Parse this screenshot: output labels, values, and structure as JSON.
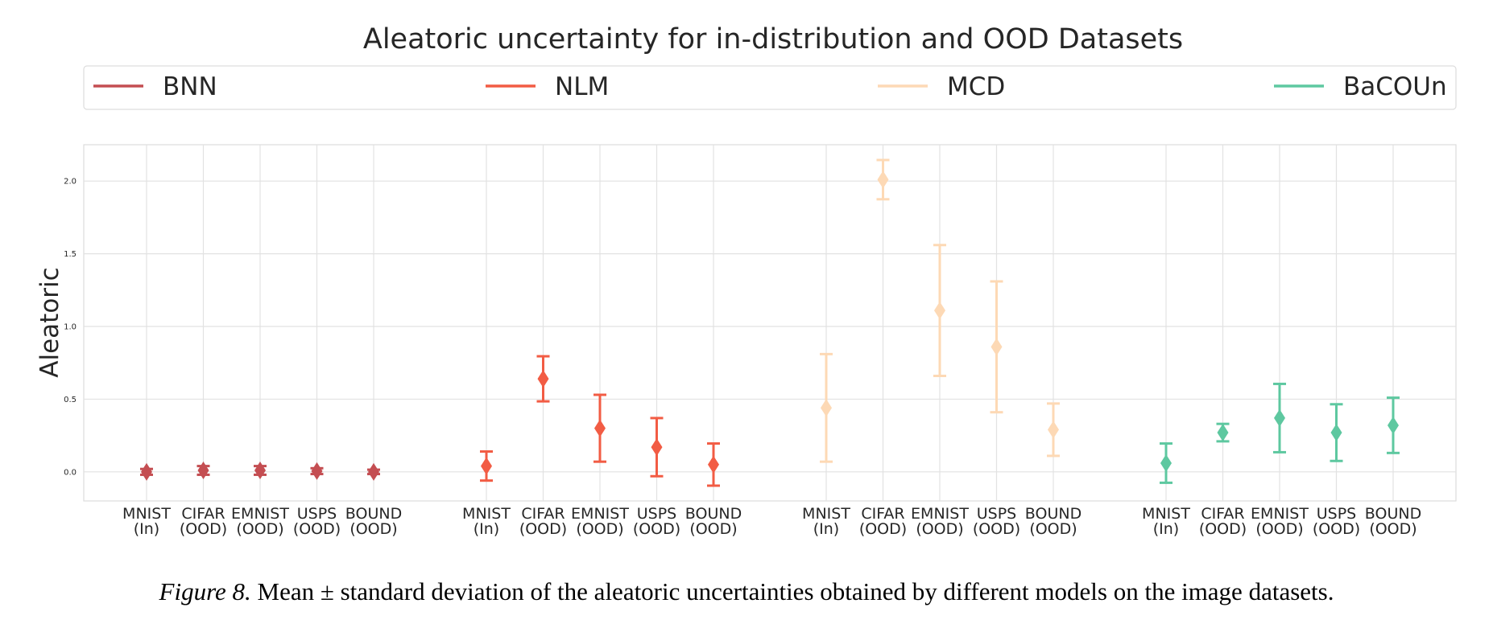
{
  "chart_data": {
    "type": "scatter",
    "title": "Aleatoric uncertainty for in-distribution and OOD Datasets",
    "ylabel": "Aleatoric",
    "xlabel": "",
    "ylim": [
      -0.2,
      2.25
    ],
    "yticks": [
      "0.0",
      "0.5",
      "1.0",
      "1.5",
      "2.0"
    ],
    "ytick_values": [
      0.0,
      0.5,
      1.0,
      1.5,
      2.0
    ],
    "categories": [
      {
        "name": "MNIST",
        "sub": "(In)"
      },
      {
        "name": "CIFAR",
        "sub": "(OOD)"
      },
      {
        "name": "EMNIST",
        "sub": "(OOD)"
      },
      {
        "name": "USPS",
        "sub": "(OOD)"
      },
      {
        "name": "BOUND",
        "sub": "(OOD)"
      }
    ],
    "grid": true,
    "legend_position": "top",
    "series": [
      {
        "name": "BNN",
        "color": "#c44e52",
        "mean": [
          0.0,
          0.01,
          0.01,
          0.005,
          0.0
        ],
        "std": [
          0.02,
          0.03,
          0.03,
          0.02,
          0.015
        ]
      },
      {
        "name": "NLM",
        "color": "#f25c44",
        "mean": [
          0.04,
          0.64,
          0.3,
          0.17,
          0.05
        ],
        "std": [
          0.1,
          0.155,
          0.23,
          0.2,
          0.145
        ]
      },
      {
        "name": "MCD",
        "color": "#fdd9b5",
        "mean": [
          0.44,
          2.01,
          1.11,
          0.86,
          0.29
        ],
        "std": [
          0.37,
          0.135,
          0.45,
          0.45,
          0.18
        ]
      },
      {
        "name": "BaCOUn",
        "color": "#5ec8a0",
        "mean": [
          0.06,
          0.27,
          0.37,
          0.27,
          0.32
        ],
        "std": [
          0.135,
          0.06,
          0.235,
          0.195,
          0.19
        ]
      }
    ]
  },
  "caption": {
    "label": "Figure 8.",
    "text": " Mean ± standard deviation of the aleatoric uncertainties obtained by different models on the image datasets."
  }
}
